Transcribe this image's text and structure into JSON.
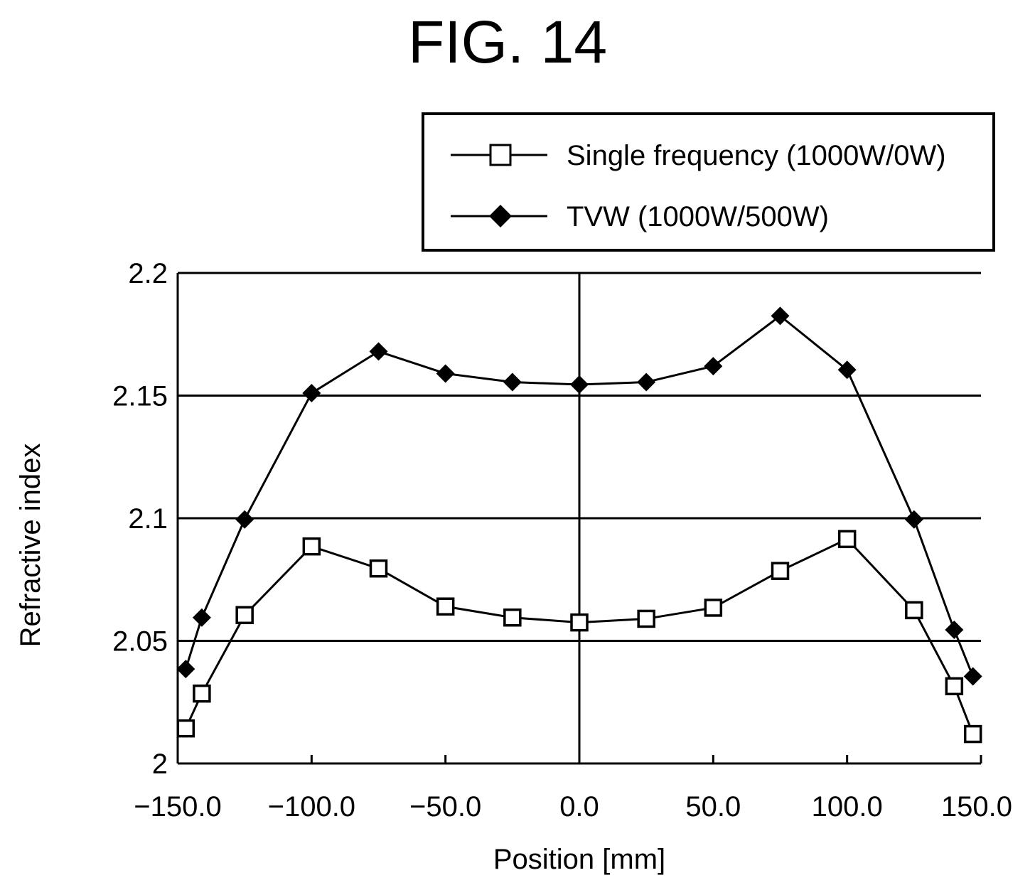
{
  "chart_data": {
    "type": "line",
    "title": "FIG. 14",
    "xlabel": "Position [mm]",
    "ylabel": "Refractive index",
    "xlim": [
      -150,
      150
    ],
    "ylim": [
      2.0,
      2.2
    ],
    "x_ticks": [
      "−150.0",
      "−100.0",
      "−50.0",
      "0.0",
      "50.0",
      "100.0",
      "150.0"
    ],
    "x_tick_values": [
      -150,
      -100,
      -50,
      0,
      50,
      100,
      150
    ],
    "y_ticks": [
      "2",
      "2.05",
      "2.1",
      "2.15",
      "2.2"
    ],
    "y_tick_values": [
      2.0,
      2.05,
      2.1,
      2.15,
      2.2
    ],
    "grid": "horizontal",
    "legend_position": "top-right",
    "series": [
      {
        "name": "Single frequency (1000W/0W)",
        "marker": "open-square",
        "x": [
          -147,
          -141,
          -125,
          -100,
          -75,
          -50,
          -25,
          0,
          25,
          50,
          75,
          100,
          125,
          140,
          147
        ],
        "y": [
          2.0143,
          2.0285,
          2.0605,
          2.0885,
          2.0795,
          2.064,
          2.0595,
          2.0575,
          2.059,
          2.0635,
          2.0785,
          2.0915,
          2.0625,
          2.0315,
          2.012
        ]
      },
      {
        "name": "TVW (1000W/500W)",
        "marker": "filled-diamond",
        "x": [
          -147,
          -141,
          -125,
          -100,
          -75,
          -50,
          -25,
          0,
          25,
          50,
          75,
          100,
          125,
          140,
          147
        ],
        "y": [
          2.0385,
          2.0595,
          2.0995,
          2.151,
          2.168,
          2.159,
          2.1555,
          2.1545,
          2.1555,
          2.162,
          2.1825,
          2.1605,
          2.0995,
          2.0545,
          2.0355
        ]
      }
    ]
  }
}
